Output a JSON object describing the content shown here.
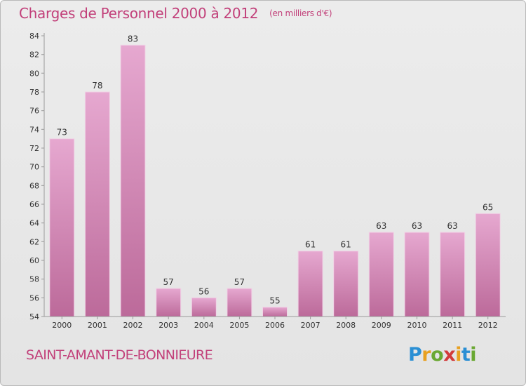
{
  "title": "Charges de Personnel 2000 à 2012",
  "unit_note": "(en milliers d'€)",
  "location": "SAINT-AMANT-DE-BONNIEURE",
  "logo": {
    "text": "Proxiti",
    "letter_colors": [
      "#2a8fd4",
      "#e8a020",
      "#6aa832",
      "#d23a3a",
      "#e8a020",
      "#2a8fd4",
      "#6aa832"
    ]
  },
  "colors": {
    "text": "#c2407a",
    "bar_light": "#e6a8d0",
    "bar_dark": "#bc6a9a",
    "axis": "#9a9a9a"
  },
  "chart_data": {
    "type": "bar",
    "categories": [
      "2000",
      "2001",
      "2002",
      "2003",
      "2004",
      "2005",
      "2006",
      "2007",
      "2008",
      "2009",
      "2010",
      "2011",
      "2012"
    ],
    "values": [
      73,
      78,
      83,
      57,
      56,
      57,
      55,
      61,
      61,
      63,
      63,
      63,
      65
    ],
    "ylim": [
      54,
      84
    ],
    "yticks": [
      54,
      56,
      58,
      60,
      62,
      64,
      66,
      68,
      70,
      72,
      74,
      76,
      78,
      80,
      82,
      84
    ],
    "title": "Charges de Personnel 2000 à 2012",
    "subtitle": "(en milliers d'€)",
    "xlabel": "",
    "ylabel": "",
    "grid": false,
    "data_labels": true
  }
}
